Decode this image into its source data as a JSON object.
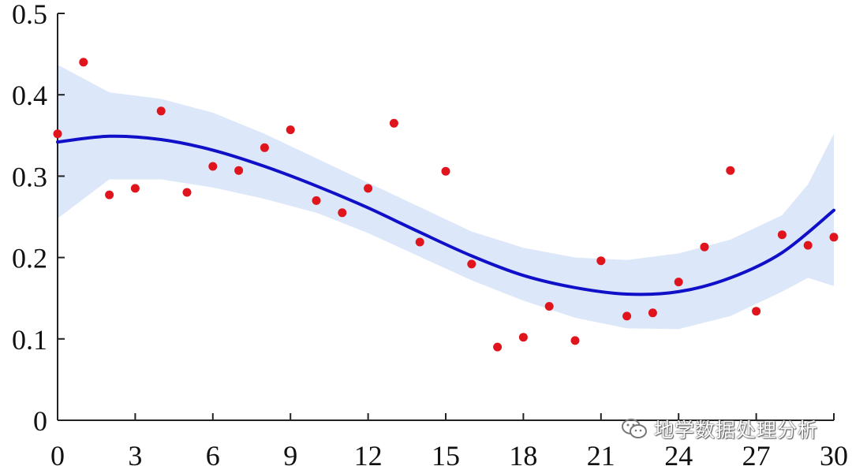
{
  "chart_data": {
    "type": "scatter",
    "title": "",
    "xlabel": "",
    "ylabel": "",
    "xlim": [
      0,
      30
    ],
    "ylim": [
      0,
      0.5
    ],
    "x_ticks": [
      0,
      3,
      6,
      9,
      12,
      15,
      18,
      21,
      24,
      27,
      30
    ],
    "x_tick_labels": [
      "0",
      "3",
      "6",
      "9",
      "12",
      "15",
      "18",
      "21",
      "24",
      "27",
      "30"
    ],
    "y_ticks": [
      0,
      0.1,
      0.2,
      0.3,
      0.4,
      0.5
    ],
    "y_tick_labels": [
      "0",
      "0.1",
      "0.2",
      "0.3",
      "0.4",
      "0.5"
    ],
    "grid": false,
    "series": [
      {
        "kind": "points",
        "color": "#e0141c",
        "x": [
          0,
          1,
          2,
          3,
          4,
          5,
          6,
          7,
          8,
          9,
          10,
          11,
          12,
          13,
          14,
          15,
          16,
          17,
          18,
          19,
          20,
          21,
          22,
          23,
          24,
          25,
          26,
          27,
          28,
          29,
          30
        ],
        "y": [
          0.352,
          0.44,
          0.277,
          0.285,
          0.38,
          0.28,
          0.312,
          0.307,
          0.335,
          0.357,
          0.27,
          0.255,
          0.285,
          0.365,
          0.219,
          0.306,
          0.192,
          0.09,
          0.102,
          0.14,
          0.098,
          0.196,
          0.128,
          0.132,
          0.17,
          0.213,
          0.307,
          0.134,
          0.228,
          0.215,
          0.225
        ]
      },
      {
        "kind": "fit-line",
        "color": "#1010c8",
        "x": [
          0,
          2,
          4,
          6,
          8,
          10,
          12,
          14,
          16,
          18,
          20,
          22,
          24,
          26,
          28,
          30
        ],
        "y": [
          0.342,
          0.349,
          0.345,
          0.332,
          0.312,
          0.288,
          0.261,
          0.231,
          0.202,
          0.178,
          0.163,
          0.155,
          0.158,
          0.175,
          0.206,
          0.258
        ]
      },
      {
        "kind": "confidence-band",
        "color": "#dce8fa",
        "x": [
          0,
          1,
          2,
          4,
          6,
          8,
          10,
          12,
          14,
          16,
          18,
          20,
          22,
          24,
          26,
          28,
          29,
          30
        ],
        "upper": [
          0.437,
          0.42,
          0.403,
          0.395,
          0.378,
          0.352,
          0.322,
          0.292,
          0.262,
          0.232,
          0.212,
          0.2,
          0.197,
          0.205,
          0.222,
          0.252,
          0.29,
          0.352
        ],
        "lower": [
          0.248,
          0.272,
          0.296,
          0.296,
          0.286,
          0.272,
          0.255,
          0.23,
          0.201,
          0.172,
          0.147,
          0.126,
          0.113,
          0.112,
          0.128,
          0.158,
          0.175,
          0.165
        ]
      }
    ]
  },
  "watermark": {
    "text": "地学数据处理分析",
    "icon": "wechat-icon"
  }
}
